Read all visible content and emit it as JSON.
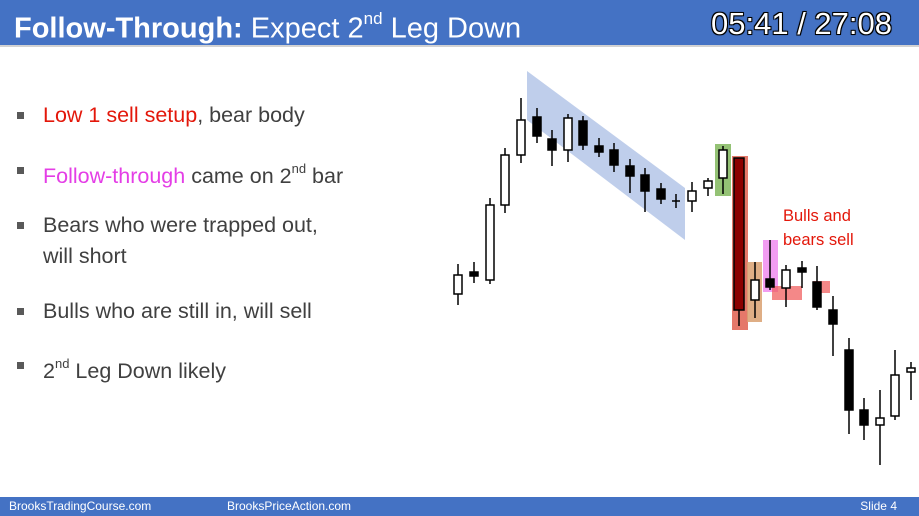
{
  "slide": {
    "title_bold": "Follow-Through:",
    "title_pre": " Expect 2",
    "title_sup": "nd",
    "title_post": " Leg Down",
    "timer": "05:41 / 27:08"
  },
  "bullets": {
    "b1_red": "Low 1 sell setup",
    "b1_rest": ", bear body",
    "b2_mag": "Follow-through",
    "b2_pre": " came on 2",
    "b2_sup": "nd",
    "b2_post": " bar",
    "b3_line1": "Bears who were trapped out,",
    "b3_line2": "will short",
    "b4": "Bulls who are still in, will sell",
    "b5_pre": "2",
    "b5_sup": "nd",
    "b5_post": " Leg Down likely"
  },
  "annotation": {
    "line1": "Bulls and",
    "line2": "bears sell"
  },
  "footer": {
    "left": "BrooksTradingCourse.com",
    "center": "BrooksPriceAction.com",
    "right": "Slide  4"
  },
  "colors": {
    "header": "#4472c4",
    "red_text": "#e3170a",
    "magenta_text": "#e43ee6",
    "channel": "#b4c6e7",
    "green_box": "#70ad47",
    "red_box": "#e06050",
    "orange_box": "#d9a070",
    "pink_box": "#f08cf0"
  }
}
